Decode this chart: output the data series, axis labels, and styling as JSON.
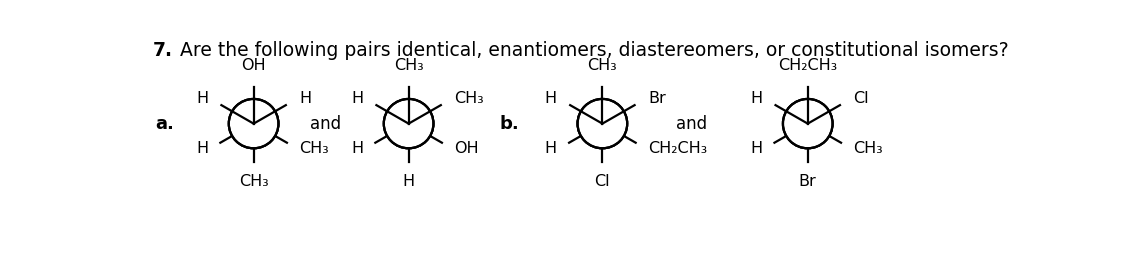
{
  "title_bold": "7.",
  "title_rest": " Are the following pairs identical, enantiomers, diastereomers, or constitutional isomers?",
  "title_fontsize": 13.5,
  "background_color": "#ffffff",
  "label_a": "a.",
  "label_b": "b.",
  "molecule_a1": {
    "top": "OH",
    "top_left": "H",
    "top_right": "H",
    "bottom_left": "H",
    "bottom_right": "CH₃",
    "bottom": "CH₃"
  },
  "molecule_a2": {
    "top": "CH₃",
    "top_left": "H",
    "top_right": "CH₃",
    "bottom_left": "H",
    "bottom_right": "OH",
    "bottom": "H"
  },
  "molecule_b1": {
    "top": "CH₃",
    "top_left": "H",
    "top_right": "Br",
    "bottom_left": "H",
    "bottom_right": "CH₂CH₃",
    "bottom": "Cl"
  },
  "molecule_b2": {
    "top": "CH₂CH₃",
    "top_left": "H",
    "top_right": "Cl",
    "bottom_left": "H",
    "bottom_right": "CH₃",
    "bottom": "Br"
  },
  "and_text": "and",
  "font_color": "#000000",
  "line_color": "#000000",
  "r": 32,
  "lw": 1.6,
  "label_fontsize": 13,
  "mol_fontsize": 11.5
}
